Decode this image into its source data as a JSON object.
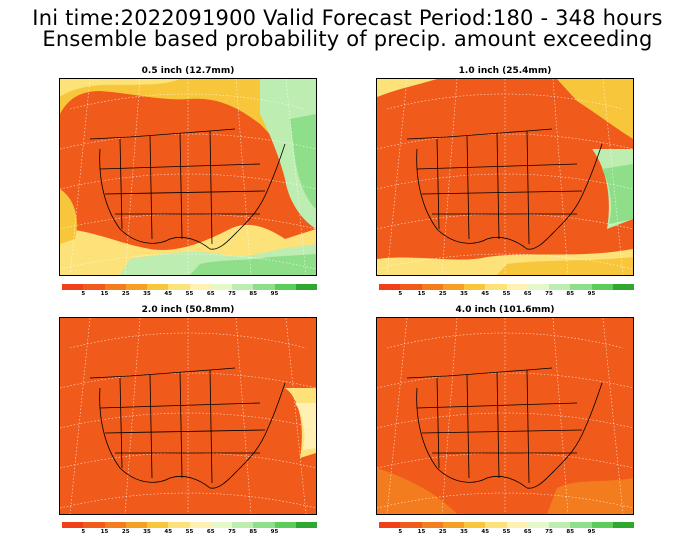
{
  "header": {
    "line1": "Ini time:2022091900  Valid Forecast Period:180 - 348 hours",
    "line2": "Ensemble based probability of precip. amount exceeding"
  },
  "panels": [
    {
      "label": "0.5 inch (12.7mm)",
      "scheme": "mixed"
    },
    {
      "label": "1.0 inch (25.4mm)",
      "scheme": "mostly-red"
    },
    {
      "label": "2.0 inch (50.8mm)",
      "scheme": "red"
    },
    {
      "label": "4.0 inch (101.6mm)",
      "scheme": "red"
    }
  ],
  "colorbar": {
    "colors": [
      "#f0401a",
      "#f05a1a",
      "#f27c1e",
      "#f5a024",
      "#f8c63a",
      "#fde27a",
      "#fff0b4",
      "#e6f8c8",
      "#bdedb0",
      "#8fdf8a",
      "#5ccd5a",
      "#2ea82e"
    ],
    "tick_labels": [
      "5",
      "15",
      "25",
      "35",
      "45",
      "55",
      "65",
      "75",
      "85",
      "95"
    ]
  }
}
